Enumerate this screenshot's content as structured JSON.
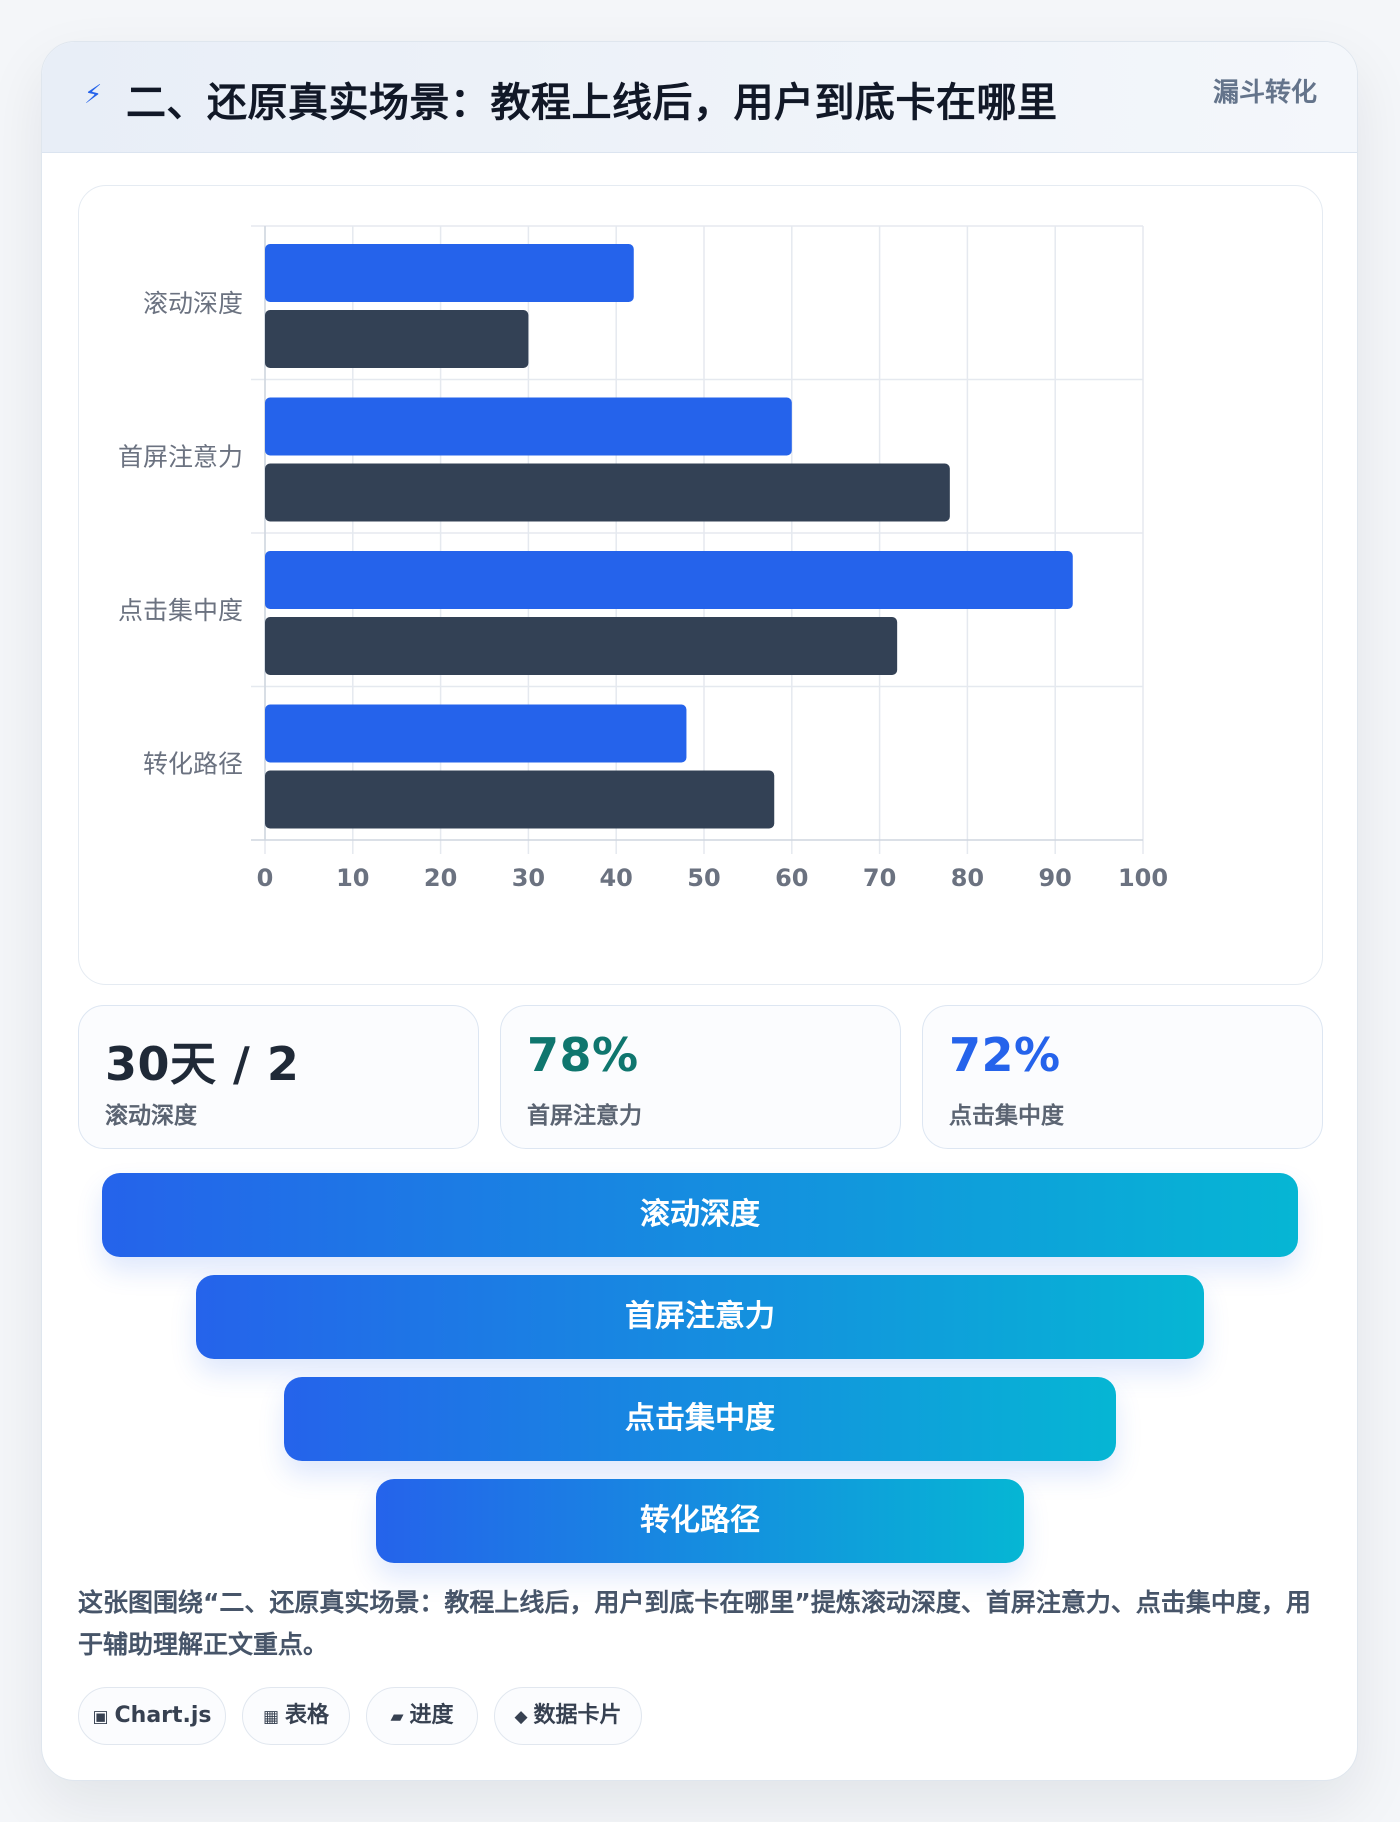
{
  "header": {
    "icon": "lightning-icon",
    "title": "二、还原真实场景：教程上线后，用户到底卡在哪里",
    "tag": "漏斗转化"
  },
  "chart_data": {
    "type": "bar",
    "orientation": "horizontal",
    "categories": [
      "滚动深度",
      "首屏注意力",
      "点击集中度",
      "转化路径"
    ],
    "series": [
      {
        "values": [
          42,
          60,
          92,
          48
        ],
        "color": "#2563eb"
      },
      {
        "values": [
          30,
          78,
          72,
          58
        ],
        "color": "#334155"
      }
    ],
    "xlim": [
      0,
      100
    ],
    "xticks": [
      0,
      10,
      20,
      30,
      40,
      50,
      60,
      70,
      80,
      90,
      100
    ],
    "grid": true,
    "legend": "none"
  },
  "stats": [
    {
      "value": "30天 / 2",
      "label": "滚动深度",
      "color": "#1f2937"
    },
    {
      "value": "78%",
      "label": "首屏注意力",
      "color": "#0f766e"
    },
    {
      "value": "72%",
      "label": "点击集中度",
      "color": "#2563eb"
    }
  ],
  "funnel": [
    "滚动深度",
    "首屏注意力",
    "点击集中度",
    "转化路径"
  ],
  "description": "这张图围绕“二、还原真实场景：教程上线后，用户到底卡在哪里”提炼滚动深度、首屏注意力、点击集中度，用于辅助理解正文重点。",
  "pills": [
    {
      "icon": "square-icon",
      "glyph": "▣",
      "label": "Chart.js"
    },
    {
      "icon": "table-icon",
      "glyph": "▦",
      "label": "表格"
    },
    {
      "icon": "progress-icon",
      "glyph": "▰",
      "label": "进度"
    },
    {
      "icon": "diamond-icon",
      "glyph": "◆",
      "label": "数据卡片"
    }
  ]
}
